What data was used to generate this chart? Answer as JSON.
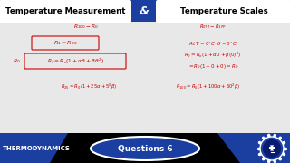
{
  "bg_color": "#e8e8e8",
  "blue_color": "#1a3fa0",
  "title_left": "Temperature Measurement",
  "title_ampersand": "&",
  "title_right": "Temperature Scales",
  "bottom_left": "THERMODYNAMICS",
  "bottom_center": "Questions 6",
  "white": "#ffffff",
  "black": "#000000",
  "red": "#cc0000",
  "dark_blue": "#0a1a6e"
}
